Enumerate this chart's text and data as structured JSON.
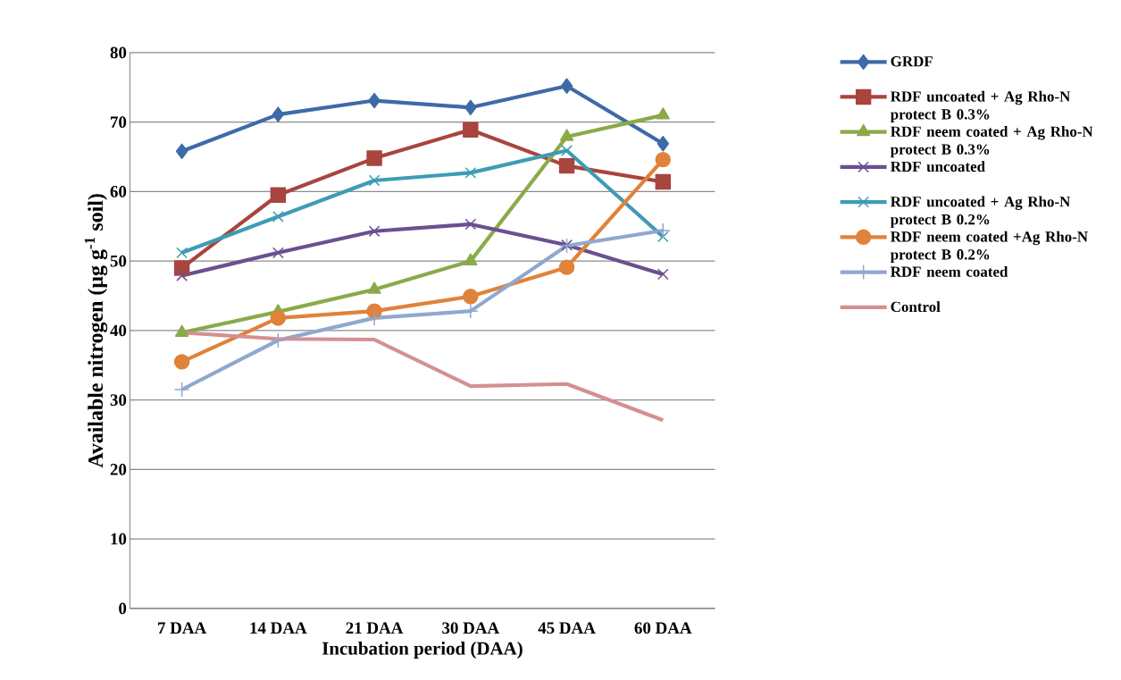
{
  "chart_data": {
    "type": "line",
    "xlabel": "Incubation period (DAA)",
    "ylabel": "Available nitrogen (µg g$^{-1}$ soil)",
    "categories": [
      "7 DAA",
      "14 DAA",
      "21 DAA",
      "30 DAA",
      "45 DAA",
      "60 DAA"
    ],
    "ylim": [
      0,
      80
    ],
    "yticks": [
      0,
      10,
      20,
      30,
      40,
      50,
      60,
      70,
      80
    ],
    "grid": "y",
    "legend": "right",
    "line_style": "solid",
    "series": [
      {
        "name": "GRDF",
        "color": "#3e6aa8",
        "marker": "diamond",
        "values": [
          65.8,
          71.1,
          73.1,
          72.1,
          75.2,
          66.9
        ]
      },
      {
        "name": "RDF uncoated + Ag Rho-N protect B 0.3%",
        "color": "#a9443f",
        "marker": "square",
        "values": [
          49.0,
          59.5,
          64.8,
          68.9,
          63.7,
          61.4
        ]
      },
      {
        "name": "RDF neem coated + Ag Rho-N protect B 0.3%",
        "color": "#8aaa48",
        "marker": "triangle",
        "values": [
          39.7,
          42.7,
          45.9,
          50.0,
          67.9,
          71.0
        ]
      },
      {
        "name": "RDF uncoated",
        "color": "#6a5090",
        "marker": "cross",
        "values": [
          47.9,
          51.2,
          54.3,
          55.3,
          52.3,
          48.1
        ]
      },
      {
        "name": "RDF uncoated + Ag Rho-N protect B 0.2%",
        "color": "#3e9cb4",
        "marker": "cross",
        "values": [
          51.2,
          56.4,
          61.6,
          62.7,
          65.9,
          53.5
        ]
      },
      {
        "name": "RDF neem coated +Ag Rho-N protect B 0.2%",
        "color": "#e0823a",
        "marker": "circle",
        "values": [
          35.5,
          41.8,
          42.8,
          44.9,
          49.1,
          64.6
        ]
      },
      {
        "name": "RDF neem coated",
        "color": "#8fa8d0",
        "marker": "plus",
        "values": [
          31.5,
          38.6,
          41.8,
          42.8,
          52.2,
          54.4
        ]
      },
      {
        "name": "Control",
        "color": "#d49090",
        "marker": "none",
        "values": [
          39.7,
          38.8,
          38.7,
          32.0,
          32.3,
          27.1
        ]
      }
    ]
  }
}
